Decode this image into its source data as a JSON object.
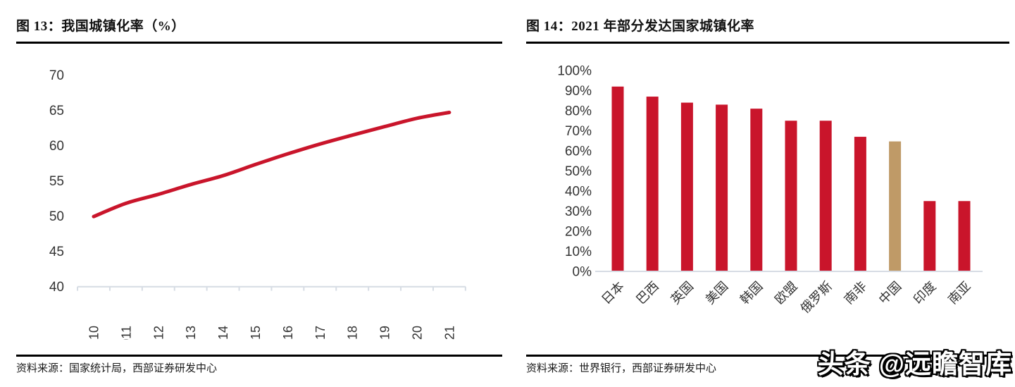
{
  "figure13": {
    "title": "图 13：我国城镇化率（%）",
    "source": "资料来源：国家统计局，西部证券研发中心"
  },
  "figure14": {
    "title": "图 14：2021 年部分发达国家城镇化率",
    "source": "资料来源：世界银行，西部证券研发中心"
  },
  "watermark": "头条 @远瞻智库",
  "colors": {
    "series_red": "#C9152B",
    "highlight_tan": "#BF9A67",
    "axis_gray": "#D6DCE4",
    "tick_text": "#333333"
  },
  "chart_data": [
    {
      "type": "line",
      "title": "图 13：我国城镇化率（%）",
      "x": [
        "2010",
        "2011",
        "2012",
        "2013",
        "2014",
        "2015",
        "2016",
        "2017",
        "2018",
        "2019",
        "2020",
        "2021"
      ],
      "values": [
        49.95,
        51.83,
        53.1,
        54.49,
        55.75,
        57.33,
        58.84,
        60.24,
        61.5,
        62.71,
        63.89,
        64.72
      ],
      "xlabel": "",
      "ylabel": "",
      "ylim": [
        40,
        70
      ],
      "yticks": [
        40,
        45,
        50,
        55,
        60,
        65,
        70
      ],
      "grid": false,
      "legend": null,
      "line_color": "#C9152B"
    },
    {
      "type": "bar",
      "title": "图 14：2021 年部分发达国家城镇化率",
      "categories": [
        "日本",
        "巴西",
        "英国",
        "美国",
        "韩国",
        "欧盟",
        "俄罗斯",
        "南非",
        "中国",
        "印度",
        "南亚"
      ],
      "values": [
        92,
        87,
        84,
        83,
        81,
        75,
        75,
        67,
        64.7,
        35,
        35
      ],
      "xlabel": "",
      "ylabel": "",
      "ylim": [
        0,
        100
      ],
      "ytick_labels": [
        "0%",
        "10%",
        "20%",
        "30%",
        "40%",
        "50%",
        "60%",
        "70%",
        "80%",
        "90%",
        "100%"
      ],
      "grid": false,
      "legend": null,
      "bar_color": "#C9152B",
      "highlight_index": 8,
      "highlight_color": "#BF9A67"
    }
  ]
}
